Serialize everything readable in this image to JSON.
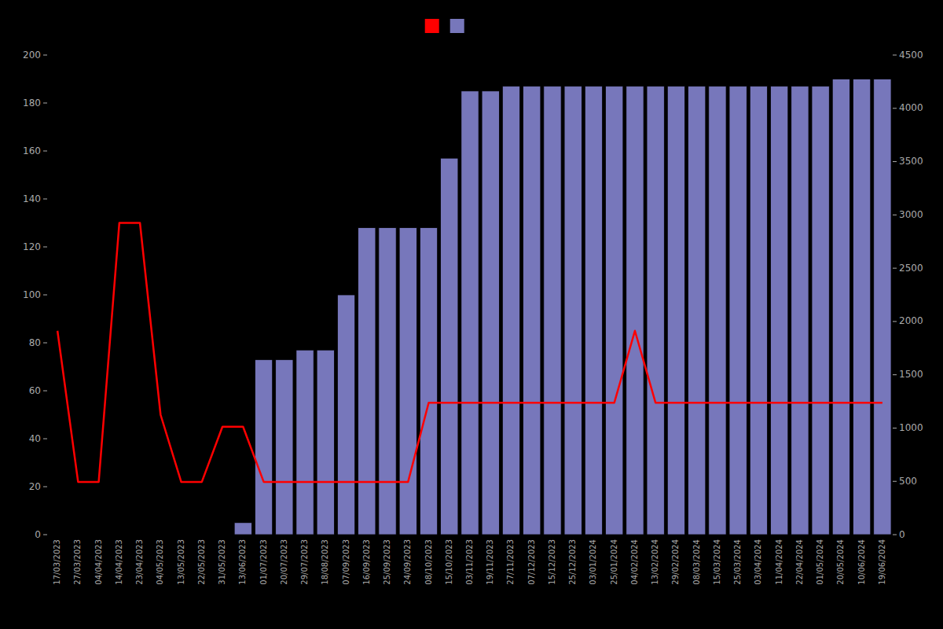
{
  "chart_data": {
    "type": "bar",
    "categories": [
      "17/03/2023",
      "27/03/2023",
      "04/04/2023",
      "14/04/2023",
      "23/04/2023",
      "04/05/2023",
      "13/05/2023",
      "22/05/2023",
      "31/05/2023",
      "13/06/2023",
      "01/07/2023",
      "20/07/2023",
      "29/07/2023",
      "18/08/2023",
      "07/09/2023",
      "16/09/2023",
      "25/09/2023",
      "24/09/2023",
      "08/10/2023",
      "15/10/2023",
      "03/11/2023",
      "19/11/2023",
      "27/11/2023",
      "07/12/2023",
      "15/12/2023",
      "25/12/2023",
      "03/01/2024",
      "25/01/2024",
      "04/02/2024",
      "13/02/2024",
      "29/02/2024",
      "08/03/2024",
      "15/03/2024",
      "25/03/2024",
      "03/04/2024",
      "11/04/2024",
      "22/04/2024",
      "01/05/2024",
      "20/05/2024",
      "10/06/2024",
      "19/06/2024"
    ],
    "series": [
      {
        "type": "bar",
        "color": "#7777bb",
        "values": [
          0,
          0,
          0,
          0,
          0,
          0,
          0,
          0,
          0,
          5,
          73,
          73,
          77,
          77,
          100,
          128,
          128,
          128,
          128,
          157,
          185,
          185,
          187,
          187,
          187,
          187,
          187,
          187,
          187,
          187,
          187,
          187,
          187,
          187,
          187,
          187,
          187,
          187,
          190,
          190,
          190
        ]
      },
      {
        "type": "line",
        "color": "#ff0000",
        "values": [
          85,
          22,
          22,
          130,
          130,
          50,
          22,
          22,
          45,
          45,
          22,
          22,
          22,
          22,
          22,
          22,
          22,
          22,
          55,
          55,
          55,
          55,
          55,
          55,
          55,
          55,
          55,
          55,
          85,
          55,
          55,
          55,
          55,
          55,
          55,
          55,
          55,
          55,
          55,
          55,
          55
        ]
      }
    ],
    "ylim": [
      0,
      200
    ],
    "yticks": [
      0,
      20,
      40,
      60,
      80,
      100,
      120,
      140,
      160,
      180,
      200
    ],
    "y2lim": [
      0,
      4500
    ],
    "y2ticks": [
      0,
      500,
      1000,
      1500,
      2000,
      2500,
      3000,
      3500,
      4000,
      4500
    ],
    "grid": false,
    "legend": "top"
  }
}
